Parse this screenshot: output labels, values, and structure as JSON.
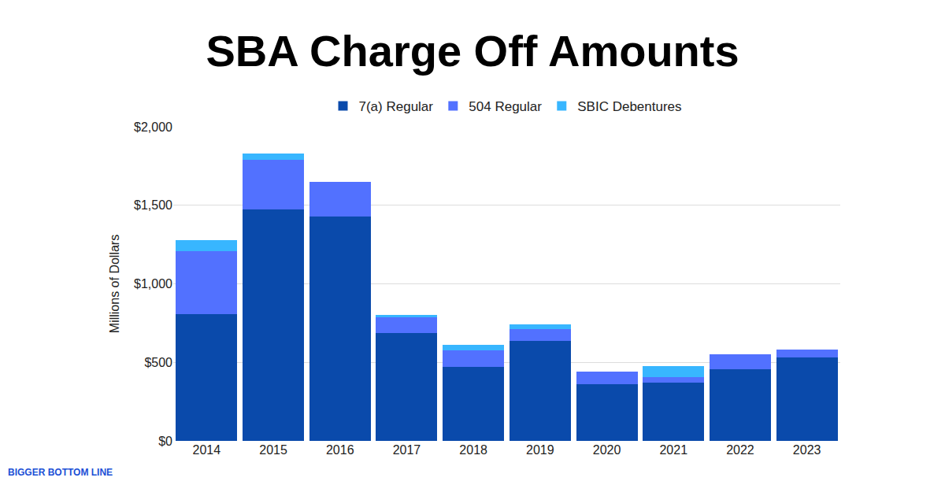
{
  "chart_data": {
    "type": "bar",
    "title": "SBA Charge Off Amounts",
    "y_label": "Millions of Dollars",
    "categories": [
      "2014",
      "2015",
      "2016",
      "2017",
      "2018",
      "2019",
      "2020",
      "2021",
      "2022",
      "2023"
    ],
    "series": [
      {
        "name": "7(a) Regular",
        "color": "#0a4aab",
        "values": [
          806,
          1472,
          1427,
          686,
          471,
          636,
          360,
          370,
          456,
          531
        ]
      },
      {
        "name": "504 Regular",
        "color": "#5271ff",
        "values": [
          400,
          315,
          220,
          100,
          105,
          75,
          80,
          35,
          95,
          50
        ]
      },
      {
        "name": "SBIC Debentures",
        "color": "#38b6ff",
        "values": [
          70,
          45,
          0,
          15,
          35,
          30,
          0,
          70,
          0,
          0
        ]
      }
    ],
    "stacked": true,
    "ylim": [
      0,
      2000
    ],
    "yticks": [
      {
        "value": 0,
        "label": "$0"
      },
      {
        "value": 500,
        "label": "$500"
      },
      {
        "value": 1000,
        "label": "$1,000"
      },
      {
        "value": 1500,
        "label": "$1,500"
      },
      {
        "value": 2000,
        "label": "$2,000"
      }
    ],
    "grid": true,
    "legend": "top",
    "annotations": [
      "BIGGER BOTTOM LINE"
    ]
  }
}
